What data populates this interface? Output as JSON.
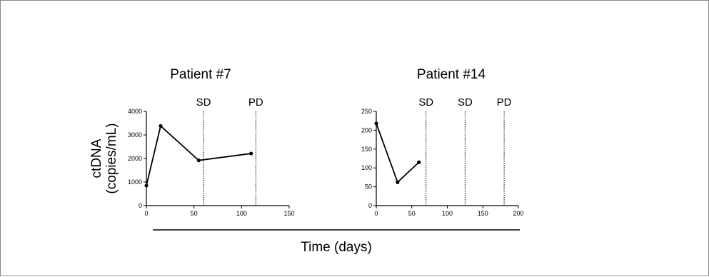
{
  "common": {
    "ylabel_line1": "ctDNA",
    "ylabel_line2": "(copies/mL)",
    "xlabel": "Time (days)"
  },
  "chart_data": [
    {
      "type": "line",
      "title": "Patient #7",
      "x": [
        0,
        15,
        55,
        110
      ],
      "y": [
        850,
        3380,
        1920,
        2210
      ],
      "xlim": [
        0,
        150
      ],
      "ylim": [
        0,
        4000
      ],
      "xticks": [
        0,
        50,
        100,
        150
      ],
      "yticks": [
        0,
        1000,
        2000,
        3000,
        4000
      ],
      "markers": [
        {
          "x": 60,
          "label": "SD"
        },
        {
          "x": 115,
          "label": "PD"
        }
      ],
      "line_color": "#000000"
    },
    {
      "type": "line",
      "title": "Patient #14",
      "x": [
        0,
        30,
        60
      ],
      "y": [
        218,
        62,
        115
      ],
      "xlim": [
        0,
        200
      ],
      "ylim": [
        0,
        250
      ],
      "xticks": [
        0,
        50,
        100,
        150,
        200
      ],
      "yticks": [
        0,
        50,
        100,
        150,
        200,
        250
      ],
      "markers": [
        {
          "x": 70,
          "label": "SD"
        },
        {
          "x": 125,
          "label": "SD"
        },
        {
          "x": 180,
          "label": "PD"
        }
      ],
      "line_color": "#000000"
    }
  ]
}
